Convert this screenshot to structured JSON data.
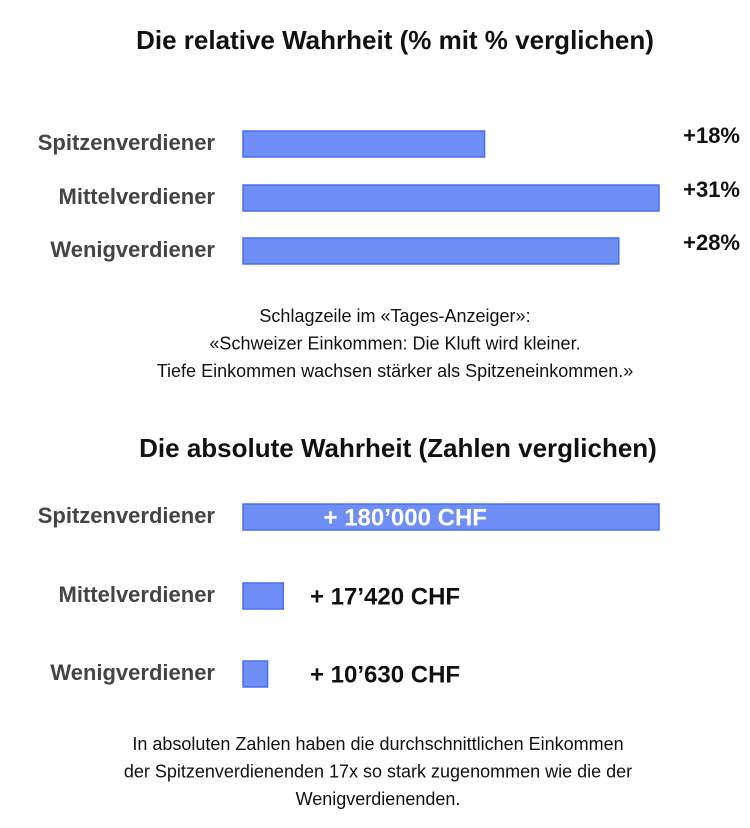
{
  "chart_data": [
    {
      "type": "bar",
      "orientation": "horizontal",
      "title": "Die relative Wahrheit (% mit % verglichen)",
      "categories": [
        "Spitzenverdiener",
        "Mittelverdiener",
        "Wenigverdiener"
      ],
      "values": [
        18,
        31,
        28
      ],
      "value_labels": [
        "+18%",
        "+31%",
        "+28%"
      ],
      "color": "#6f8ff7",
      "caption": [
        "Schlagzeile im «Tages-Anzeiger»:",
        "«Schweizer Einkommen: Die Kluft wird kleiner.",
        "Tiefe Einkommen wachsen stärker als Spitzeneinkommen.»"
      ]
    },
    {
      "type": "bar",
      "orientation": "horizontal",
      "title": "Die absolute Wahrheit (Zahlen verglichen)",
      "categories": [
        "Spitzenverdiener",
        "Mittelverdiener",
        "Wenigverdiener"
      ],
      "values": [
        180000,
        17420,
        10630
      ],
      "value_labels": [
        "+ 180’000 CHF",
        "+ 17’420 CHF",
        "+ 10’630 CHF"
      ],
      "color": "#6f8ff7",
      "caption": [
        "In absoluten Zahlen haben die durchschnittlichen Einkommen",
        "der Spitzenverdienenden 17x so stark zugenommen wie die der",
        "Wenigverdienenden."
      ]
    }
  ]
}
